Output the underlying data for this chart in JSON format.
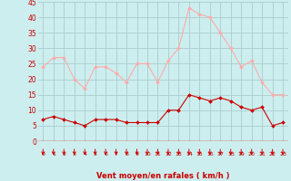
{
  "x": [
    0,
    1,
    2,
    3,
    4,
    5,
    6,
    7,
    8,
    9,
    10,
    11,
    12,
    13,
    14,
    15,
    16,
    17,
    18,
    19,
    20,
    21,
    22,
    23
  ],
  "wind_avg": [
    7,
    8,
    7,
    6,
    5,
    7,
    7,
    7,
    6,
    6,
    6,
    6,
    10,
    10,
    15,
    14,
    13,
    14,
    13,
    11,
    10,
    11,
    5,
    6
  ],
  "wind_gust": [
    24,
    27,
    27,
    20,
    17,
    24,
    24,
    22,
    19,
    25,
    25,
    19,
    26,
    30,
    43,
    41,
    40,
    35,
    30,
    24,
    26,
    19,
    15,
    15
  ],
  "color_avg": "#cc0000",
  "color_gust": "#ffaaaa",
  "bg_color": "#cceeee",
  "grid_color": "#aacccc",
  "xlabel": "Vent moyen/en rafales ( km/h )",
  "xlabel_color": "#cc0000",
  "tick_color": "#cc0000",
  "ylim": [
    0,
    45
  ],
  "yticks": [
    0,
    5,
    10,
    15,
    20,
    25,
    30,
    35,
    40,
    45
  ],
  "arrow_color": "#cc0000",
  "figsize": [
    3.2,
    2.0
  ],
  "dpi": 100
}
